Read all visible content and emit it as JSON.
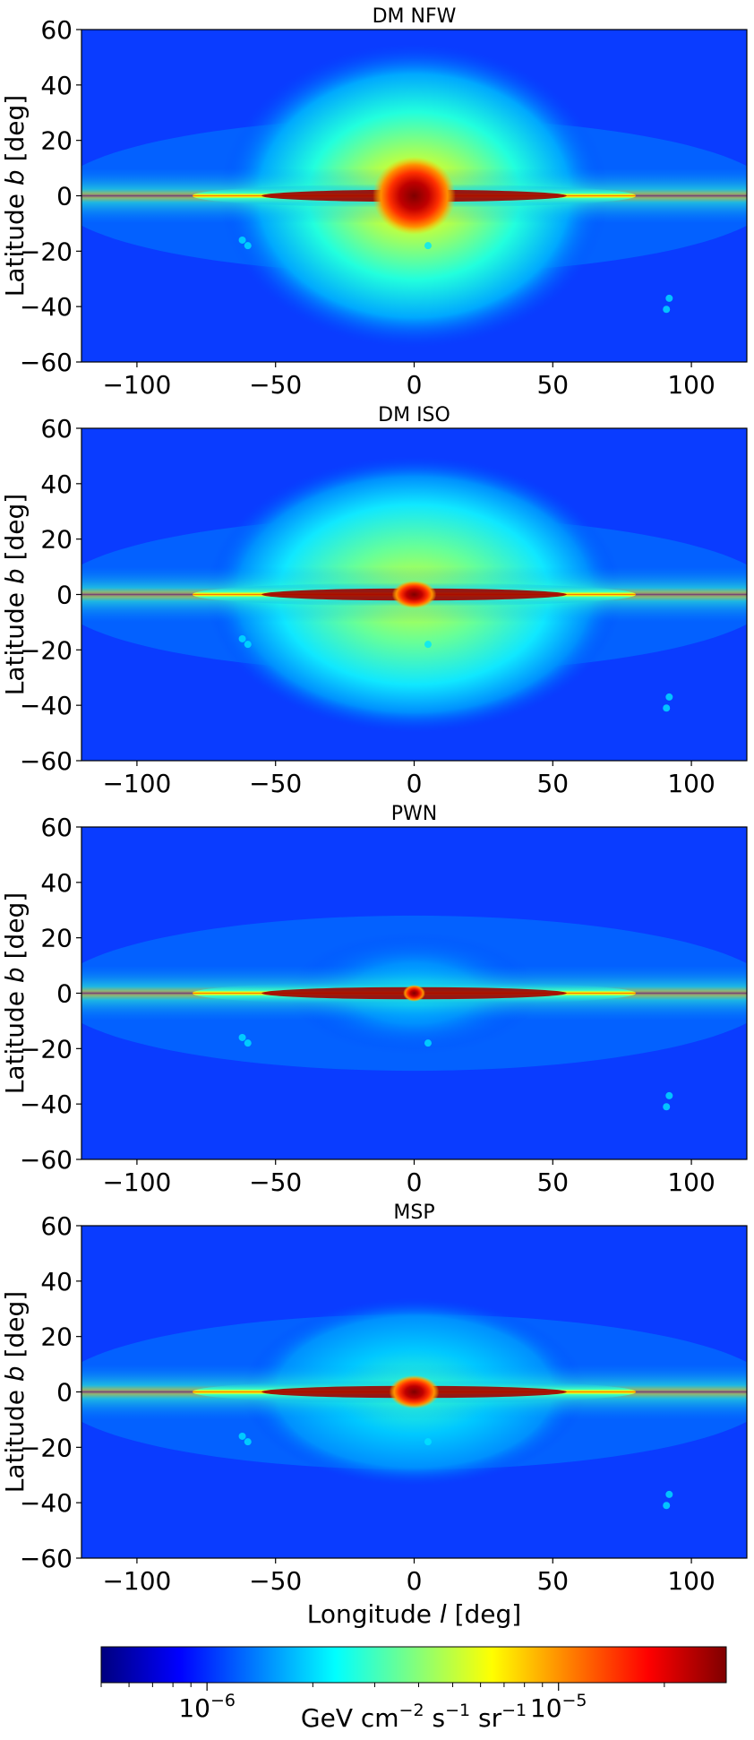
{
  "chart_data": [
    {
      "type": "heatmap",
      "title": "DM NFW",
      "xlabel": "",
      "ylabel": "Latitude b [deg]",
      "xlim": [
        -120,
        120
      ],
      "ylim": [
        -60,
        60
      ],
      "xticks": [
        -100,
        -50,
        0,
        50,
        100
      ],
      "yticks": [
        60,
        40,
        20,
        0,
        -20,
        -40,
        -60
      ],
      "morphology": "bright spherical halo centered on l=0,b=0 plus thin Galactic-disk band",
      "disk_extent_deg": [
        -80,
        80
      ],
      "peak_location_deg": [
        0,
        0
      ],
      "colorscale": "jet-log"
    },
    {
      "type": "heatmap",
      "title": "DM ISO",
      "xlabel": "",
      "ylabel": "Latitude b [deg]",
      "xlim": [
        -120,
        120
      ],
      "ylim": [
        -60,
        60
      ],
      "xticks": [
        -100,
        -50,
        0,
        50,
        100
      ],
      "yticks": [
        60,
        40,
        20,
        0,
        -20,
        -40,
        -60
      ],
      "morphology": "broad diffuse halo with strong Galactic-disk band",
      "disk_extent_deg": [
        -80,
        80
      ],
      "peak_location_deg": [
        0,
        0
      ],
      "colorscale": "jet-log"
    },
    {
      "type": "heatmap",
      "title": "PWN",
      "xlabel": "",
      "ylabel": "Latitude b [deg]",
      "xlim": [
        -120,
        120
      ],
      "ylim": [
        -60,
        60
      ],
      "xticks": [
        -100,
        -50,
        0,
        50,
        100
      ],
      "yticks": [
        60,
        40,
        20,
        0,
        -20,
        -40,
        -60
      ],
      "morphology": "emission concentrated in thin Galactic disk, weak halo",
      "disk_extent_deg": [
        -80,
        80
      ],
      "peak_location_deg": [
        0,
        0
      ],
      "colorscale": "jet-log"
    },
    {
      "type": "heatmap",
      "title": "MSP",
      "xlabel": "Longitude l [deg]",
      "ylabel": "Latitude b [deg]",
      "xlim": [
        -120,
        120
      ],
      "ylim": [
        -60,
        60
      ],
      "xticks": [
        -100,
        -50,
        0,
        50,
        100
      ],
      "yticks": [
        60,
        40,
        20,
        0,
        -20,
        -40,
        -60
      ],
      "morphology": "Galactic disk band with moderate central bulge",
      "disk_extent_deg": [
        -80,
        80
      ],
      "peak_location_deg": [
        0,
        0
      ],
      "colorscale": "jet-log"
    }
  ],
  "colorbar": {
    "scale": "log",
    "range": [
      5e-07,
      3e-05
    ],
    "major_ticks": [
      {
        "value": 1e-06,
        "label_base": "10",
        "label_exp": "−6"
      },
      {
        "value": 1e-05,
        "label_base": "10",
        "label_exp": "−5"
      }
    ],
    "label": "GeV cm−2 s−1 sr−1",
    "colors": [
      "#00007f",
      "#0000ff",
      "#007fff",
      "#00ffff",
      "#7fff7f",
      "#ffff00",
      "#ff7f00",
      "#ff0000",
      "#7f0000"
    ]
  }
}
